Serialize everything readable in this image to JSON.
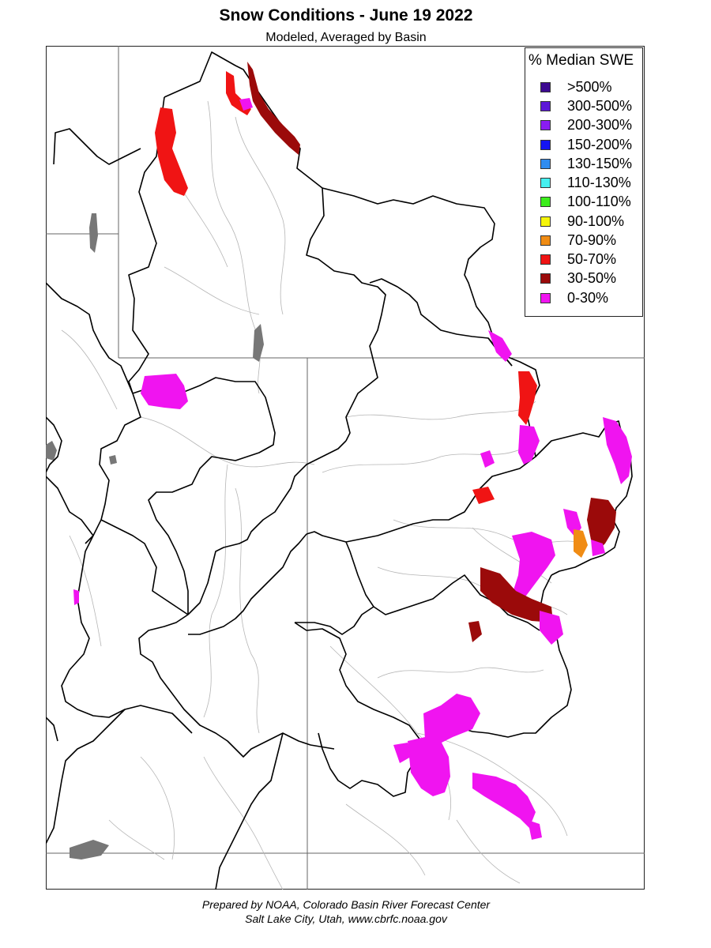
{
  "title": "Snow Conditions - June 19 2022",
  "subtitle": "Modeled, Averaged by Basin",
  "legend": {
    "title": "% Median SWE",
    "items": [
      {
        "label": ">500%",
        "color": "#3d0a91"
      },
      {
        "label": "300-500%",
        "color": "#5d17d8"
      },
      {
        "label": "200-300%",
        "color": "#8a1cf2"
      },
      {
        "label": "150-200%",
        "color": "#1414f2"
      },
      {
        "label": "130-150%",
        "color": "#2f8cf0"
      },
      {
        "label": "110-130%",
        "color": "#46f0f0"
      },
      {
        "label": "100-110%",
        "color": "#3ced1c"
      },
      {
        "label": "90-100%",
        "color": "#f5f50a"
      },
      {
        "label": "70-90%",
        "color": "#f08c14"
      },
      {
        "label": "50-70%",
        "color": "#f01414"
      },
      {
        "label": "30-50%",
        "color": "#9b0a0a"
      },
      {
        "label": "0-30%",
        "color": "#f014f0"
      }
    ]
  },
  "footer": {
    "line1": "Prepared by NOAA, Colorado Basin River Forecast Center",
    "line2": "Salt Lake City, Utah, www.cbrfc.noaa.gov"
  }
}
